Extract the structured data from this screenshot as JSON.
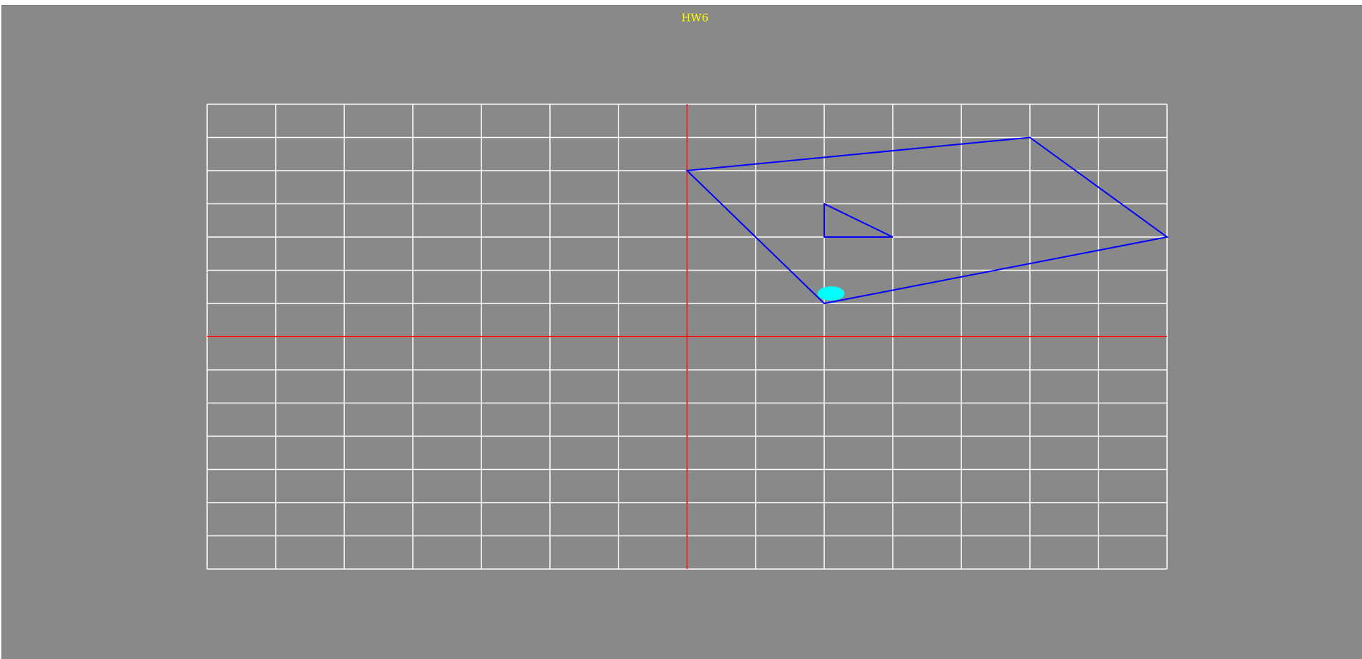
{
  "window": {
    "title": "HW6",
    "title_color": "#ffff00",
    "background_color": "#898989"
  },
  "plot": {
    "grid": true,
    "grid_color": "#ffffff",
    "axes_color": "#ff0000",
    "x_range": [
      -7,
      7
    ],
    "y_range": [
      -7,
      7
    ],
    "shape_color": "#0000ff",
    "quadrilateral": [
      [
        0,
        5
      ],
      [
        5,
        6
      ],
      [
        7,
        3
      ],
      [
        2,
        1
      ]
    ],
    "triangle": [
      [
        2,
        4
      ],
      [
        2,
        3
      ],
      [
        3,
        3
      ]
    ],
    "marker": {
      "x": 2.1,
      "y": 1.3,
      "color": "#00ffff"
    }
  }
}
